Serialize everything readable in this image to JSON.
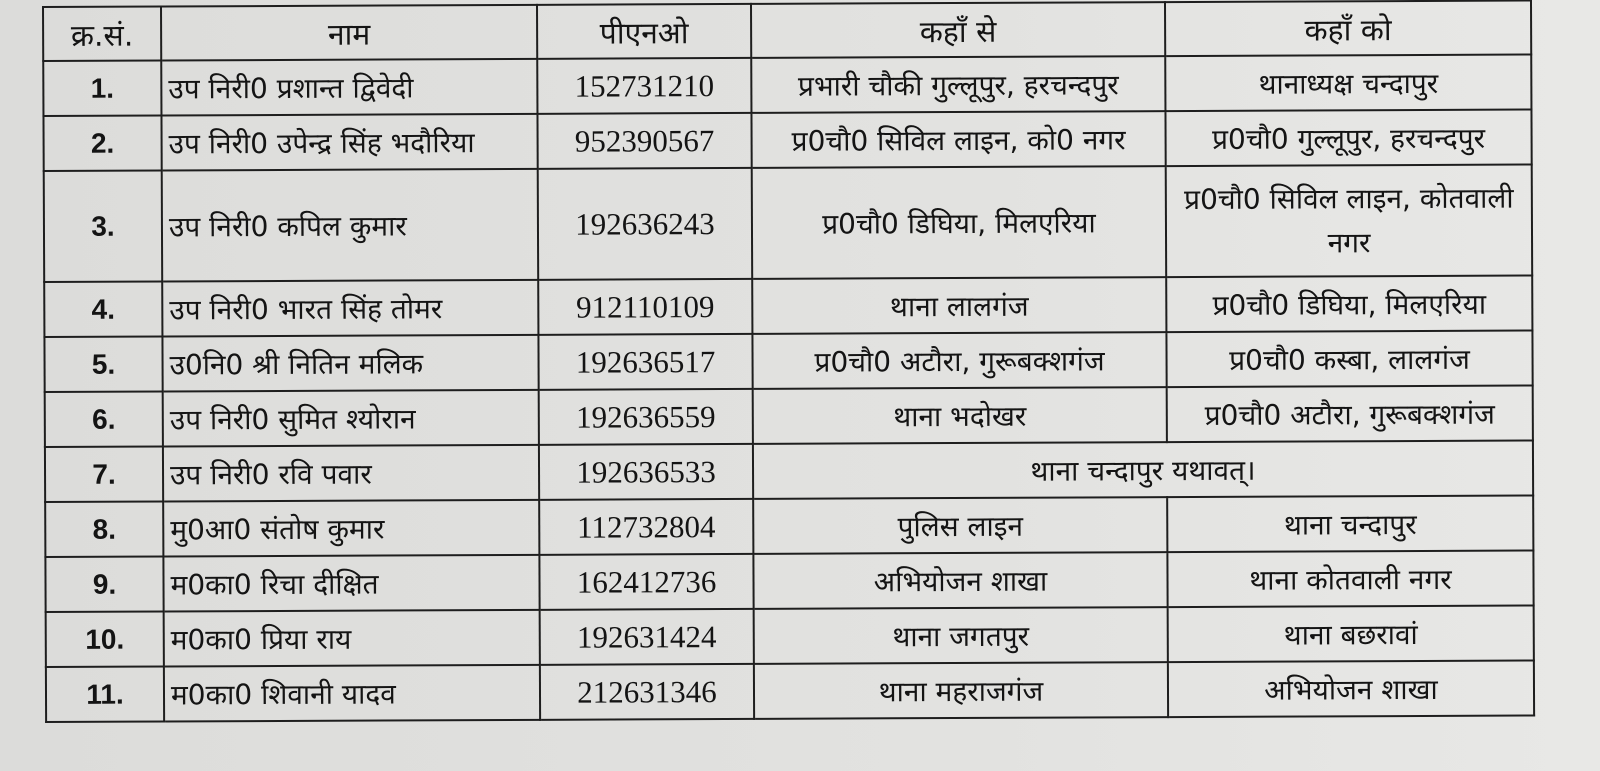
{
  "headers": [
    "क्र.सं.",
    "नाम",
    "पीएनओ",
    "कहाँ से",
    "कहाँ को"
  ],
  "rows": [
    {
      "sn": "1.",
      "name": "उप निरी0 प्रशान्त द्विवेदी",
      "pno": "152731210",
      "from": "प्रभारी चौकी गुल्लूपुर, हरचन्दपुर",
      "to": "थानाध्यक्ष चन्दापुर"
    },
    {
      "sn": "2.",
      "name": "उप निरी0 उपेन्द्र सिंह भदौरिया",
      "pno": "952390567",
      "from": "प्र0चौ0 सिविल लाइन, को0 नगर",
      "to": "प्र0चौ0 गुल्लूपुर, हरचन्दपुर"
    },
    {
      "sn": "3.",
      "name": "उप निरी0 कपिल कुमार",
      "pno": "192636243",
      "from": "प्र0चौ0 डिघिया, मिलएरिया",
      "to": "प्र0चौ0 सिविल लाइन, कोतवाली नगर"
    },
    {
      "sn": "4.",
      "name": "उप निरी0 भारत सिंह तोमर",
      "pno": "912110109",
      "from": "थाना लालगंज",
      "to": "प्र0चौ0 डिघिया, मिलएरिया"
    },
    {
      "sn": "5.",
      "name": "उ0नि0 श्री नितिन मलिक",
      "pno": "192636517",
      "from": "प्र0चौ0 अटौरा, गुरूबक्शगंज",
      "to": "प्र0चौ0 कस्बा, लालगंज"
    },
    {
      "sn": "6.",
      "name": "उप निरी0 सुमित श्योरान",
      "pno": "192636559",
      "from": "थाना भदोखर",
      "to": "प्र0चौ0 अटौरा, गुरूबक्शगंज"
    },
    {
      "sn": "7.",
      "name": "उप निरी0 रवि पवार",
      "pno": "192636533",
      "merged": "थाना चन्दापुर यथावत्।"
    },
    {
      "sn": "8.",
      "name": "मु0आ0 संतोष कुमार",
      "pno": "112732804",
      "from": "पुलिस लाइन",
      "to": "थाना चन्दापुर"
    },
    {
      "sn": "9.",
      "name": "म0का0 रिचा दीक्षित",
      "pno": "162412736",
      "from": "अभियोजन शाखा",
      "to": "थाना कोतवाली नगर"
    },
    {
      "sn": "10.",
      "name": "म0का0 प्रिया राय",
      "pno": "192631424",
      "from": "थाना जगतपुर",
      "to": "थाना बछरावां"
    },
    {
      "sn": "11.",
      "name": "म0का0 शिवानी यादव",
      "pno": "212631346",
      "from": "थाना महराजगंज",
      "to": "अभियोजन शाखा"
    }
  ]
}
